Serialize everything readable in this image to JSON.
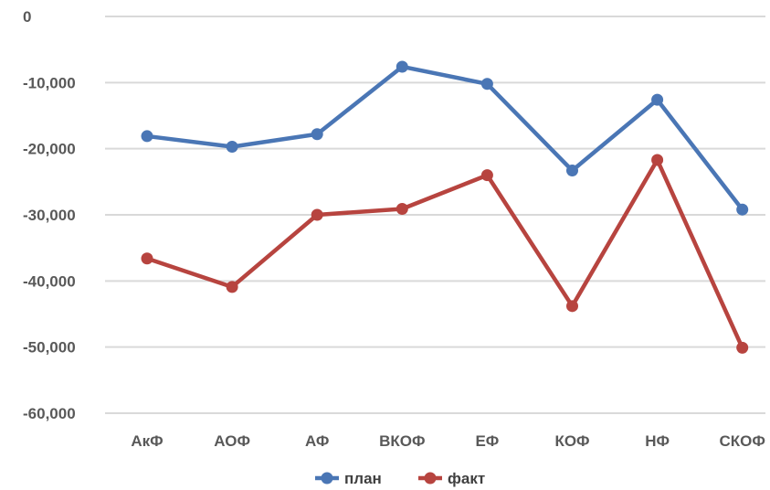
{
  "chart_data": {
    "type": "line",
    "title": "",
    "xlabel": "",
    "ylabel": "",
    "categories": [
      "АкФ",
      "АОФ",
      "АФ",
      "ВКОФ",
      "ЕФ",
      "КОФ",
      "НФ",
      "СКОФ"
    ],
    "ylim": [
      -60000,
      0
    ],
    "yticks": [
      0,
      -10000,
      -20000,
      -30000,
      -40000,
      -50000,
      -60000
    ],
    "ytick_labels": [
      "0",
      "-10,000",
      "-20,000",
      "-30,000",
      "-40,000",
      "-50,000",
      "-60,000"
    ],
    "grid": true,
    "legend_position": "bottom",
    "series": [
      {
        "name": "план",
        "color": "#4a76b5",
        "values": [
          -18100,
          -19700,
          -17800,
          -7600,
          -10200,
          -23300,
          -12600,
          -29200
        ]
      },
      {
        "name": "факт",
        "color": "#b7443f",
        "values": [
          -36600,
          -40900,
          -30000,
          -29100,
          -24000,
          -43800,
          -21700,
          -50100
        ]
      }
    ]
  }
}
